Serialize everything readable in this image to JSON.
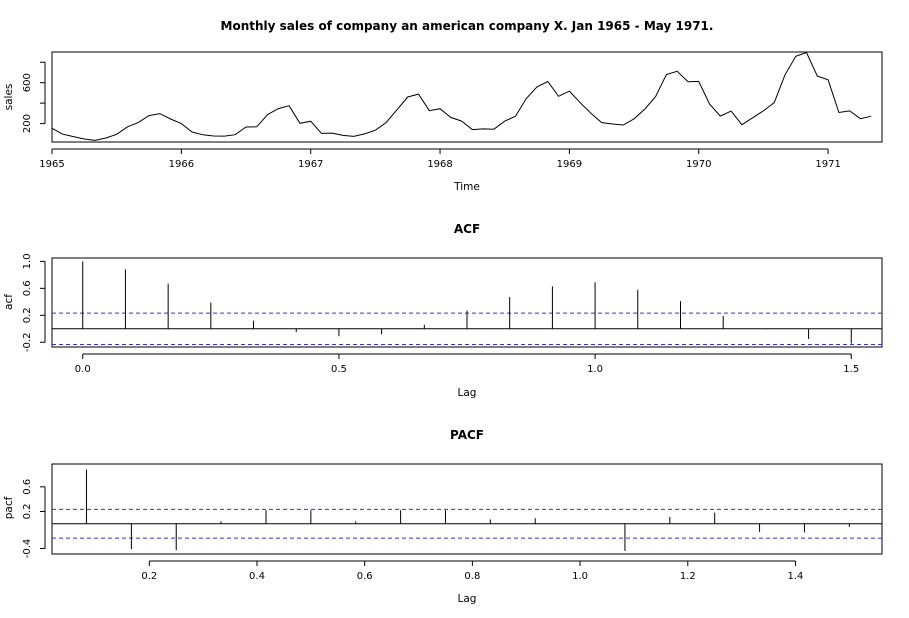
{
  "chart_data": [
    {
      "type": "line",
      "title": "Monthly sales of company an american company X. Jan 1965 - May 1971.",
      "xlabel": "Time",
      "ylabel": "sales",
      "xlim": [
        1965,
        1971.4167
      ],
      "ylim": [
        20,
        900
      ],
      "xticks": [
        1965,
        1966,
        1967,
        1968,
        1969,
        1970,
        1971
      ],
      "yticks": [
        200,
        400,
        600,
        800
      ],
      "ytick_labels": [
        "200",
        "",
        "600",
        ""
      ],
      "x_start": 1965,
      "x_step": 0.083333,
      "values": [
        154,
        96,
        73,
        49,
        36,
        59,
        95,
        169,
        210,
        278,
        298,
        245,
        200,
        118,
        90,
        79,
        78,
        91,
        167,
        169,
        289,
        347,
        375,
        203,
        223,
        104,
        107,
        85,
        75,
        99,
        135,
        211,
        335,
        460,
        488,
        326,
        346,
        261,
        224,
        141,
        148,
        145,
        223,
        272,
        445,
        560,
        612,
        467,
        518,
        404,
        300,
        210,
        196,
        186,
        247,
        343,
        464,
        680,
        711,
        610,
        613,
        392,
        273,
        322,
        189,
        257,
        324,
        404,
        677,
        858,
        895,
        664,
        628,
        308,
        324,
        248,
        272
      ],
      "hlines": []
    },
    {
      "type": "bar",
      "title": "ACF",
      "xlabel": "Lag",
      "ylabel": "acf",
      "xlim": [
        -0.06,
        1.56
      ],
      "ylim": [
        -0.27,
        1.05
      ],
      "xticks": [
        0,
        0.5,
        1.0,
        1.5
      ],
      "xtick_labels": [
        "0.0",
        "0.5",
        "1.0",
        "1.5"
      ],
      "yticks": [
        -0.2,
        0.2,
        0.6,
        1.0
      ],
      "ytick_labels": [
        "-0.2",
        "0.2",
        "0.6",
        "1.0"
      ],
      "lags": [
        0,
        0.0833,
        0.1667,
        0.25,
        0.3333,
        0.4167,
        0.5,
        0.5833,
        0.6667,
        0.75,
        0.8333,
        0.9167,
        1.0,
        1.0833,
        1.1667,
        1.25,
        1.3333,
        1.4167,
        1.5
      ],
      "values": [
        1.0,
        0.88,
        0.67,
        0.39,
        0.12,
        -0.05,
        -0.11,
        -0.08,
        0.06,
        0.27,
        0.47,
        0.63,
        0.69,
        0.58,
        0.41,
        0.19,
        -0.01,
        -0.15,
        -0.22
      ],
      "hlines": [
        0.233,
        -0.233
      ]
    },
    {
      "type": "bar",
      "title": "PACF",
      "xlabel": "Lag",
      "ylabel": "pacf",
      "xlim": [
        0.0193,
        1.5607
      ],
      "ylim": [
        -0.49,
        0.97
      ],
      "xticks": [
        0.2,
        0.4,
        0.6,
        0.8,
        1.0,
        1.2,
        1.4
      ],
      "xtick_labels": [
        "0.2",
        "0.4",
        "0.6",
        "0.8",
        "1.0",
        "1.2",
        "1.4"
      ],
      "yticks": [
        -0.4,
        0.2,
        0.6
      ],
      "ytick_labels": [
        "-0.4",
        "0.2",
        "0.6"
      ],
      "lags": [
        0.0833,
        0.1667,
        0.25,
        0.3333,
        0.4167,
        0.5,
        0.5833,
        0.6667,
        0.75,
        0.8333,
        0.9167,
        1.0,
        1.0833,
        1.1667,
        1.25,
        1.3333,
        1.4167,
        1.5
      ],
      "values": [
        0.88,
        -0.41,
        -0.43,
        0.04,
        0.22,
        0.22,
        0.04,
        0.22,
        0.22,
        0.07,
        0.09,
        0.0,
        -0.44,
        0.11,
        0.18,
        -0.13,
        -0.14,
        -0.05
      ],
      "hlines": [
        0.233,
        -0.233
      ]
    }
  ]
}
